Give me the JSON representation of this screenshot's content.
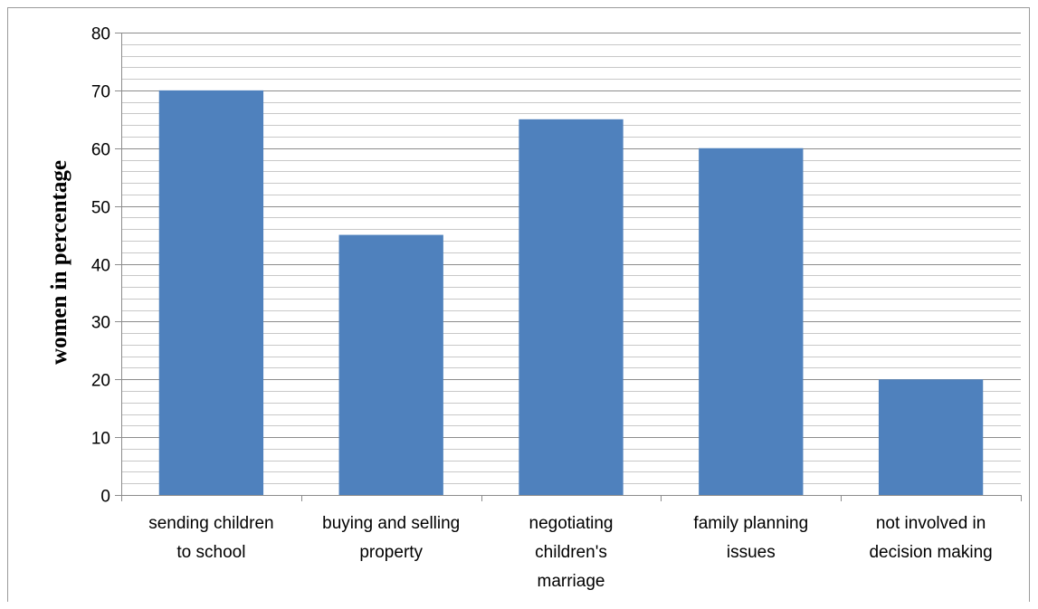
{
  "chart_data": {
    "type": "bar",
    "title": "",
    "xlabel": "",
    "ylabel": "women in percentage",
    "categories": [
      [
        "sending children",
        "to school"
      ],
      [
        "buying and selling",
        "property"
      ],
      [
        "negotiating",
        "children's",
        "marriage"
      ],
      [
        "family planning",
        "issues"
      ],
      [
        "not involved in",
        "decision making"
      ]
    ],
    "values": [
      70,
      45,
      65,
      60,
      20
    ],
    "ylim": [
      0,
      80
    ],
    "yticks": [
      0,
      10,
      20,
      30,
      40,
      50,
      60,
      70,
      80
    ],
    "grid": true,
    "bar_color": "#4f81bd",
    "major_grid_color": "#8c8c8c",
    "minor_grid_color": "#c8c8c8"
  }
}
